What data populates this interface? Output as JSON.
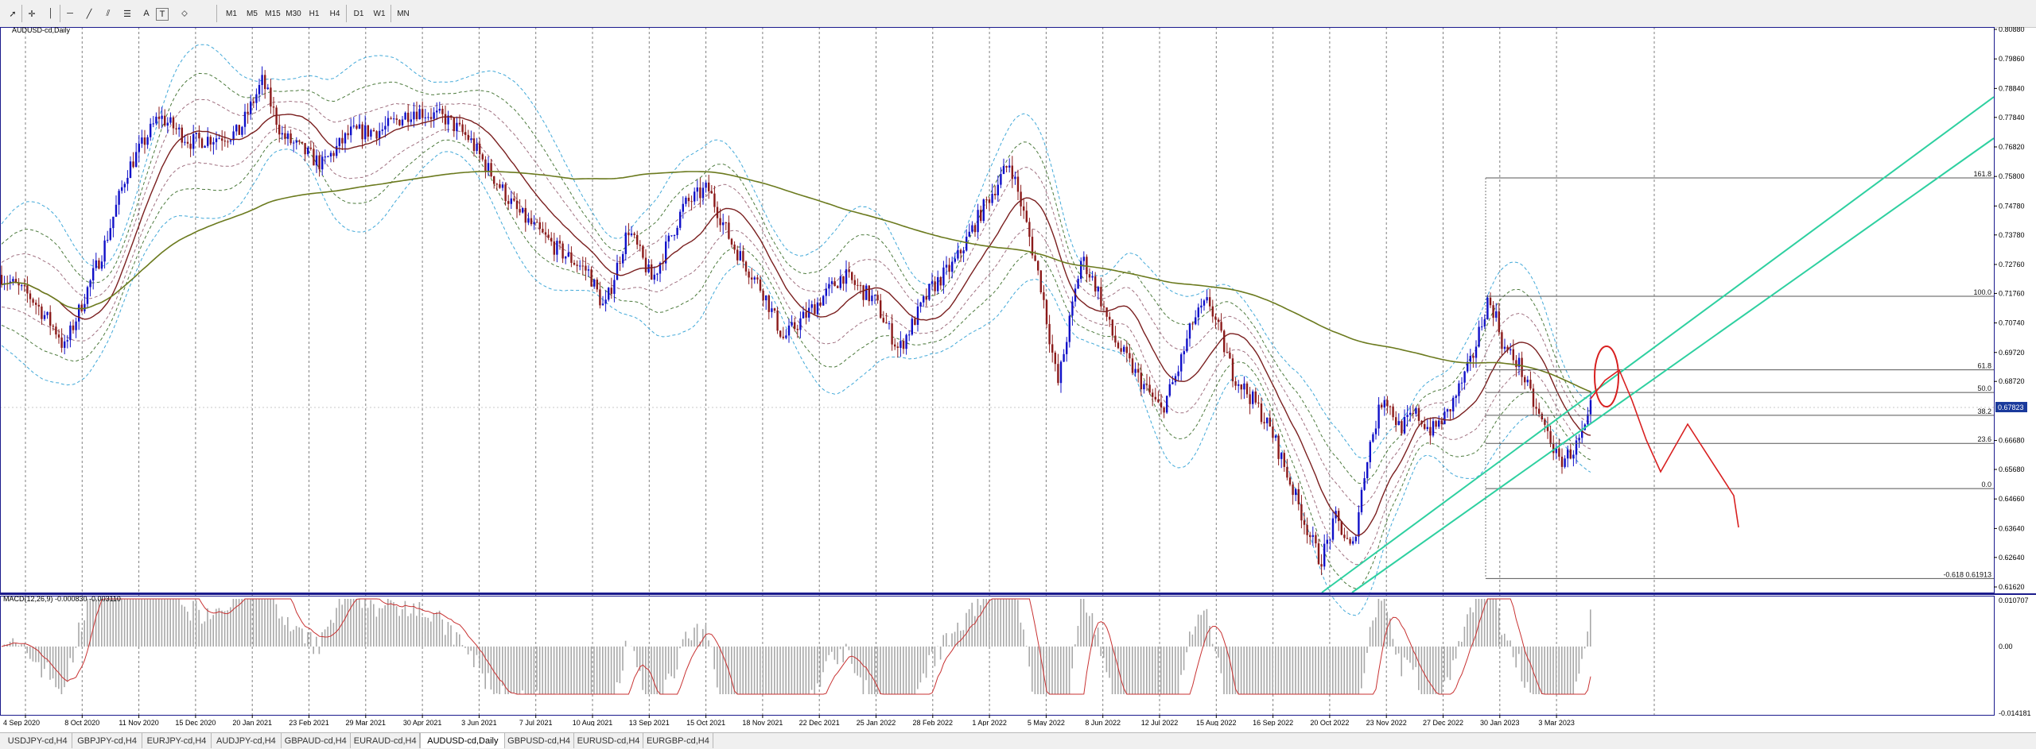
{
  "toolbar": {
    "tools": [
      "cursor-icon",
      "crosshair-icon",
      "vertical-line-icon",
      "horizontal-line-icon",
      "trendline-icon",
      "channel-icon",
      "fibonacci-icon",
      "text-icon",
      "text-label-icon",
      "shapes-icon"
    ],
    "text_tool": "A",
    "label_tool": "T",
    "timeframes": [
      "M1",
      "M5",
      "M15",
      "M30",
      "H1",
      "H4",
      "D1",
      "W1",
      "MN"
    ]
  },
  "chart": {
    "title": "AUDUSD-cd,Daily",
    "current_price": "0.67823",
    "price_labels": [
      "0.80880",
      "0.79860",
      "0.78840",
      "0.77840",
      "0.76820",
      "0.75800",
      "0.74780",
      "0.73780",
      "0.72760",
      "0.71760",
      "0.70740",
      "0.69720",
      "0.68720",
      "0.67823",
      "0.66680",
      "0.65680",
      "0.64660",
      "0.63640",
      "0.62640",
      "0.61620"
    ],
    "price_range": {
      "top": 0.8088,
      "bottom": 0.6162
    },
    "date_labels": [
      "4 Sep 2020",
      "8 Oct 2020",
      "11 Nov 2020",
      "15 Dec 2020",
      "20 Jan 2021",
      "23 Feb 2021",
      "29 Mar 2021",
      "30 Apr 2021",
      "3 Jun 2021",
      "7 Jul 2021",
      "10 Aug 2021",
      "13 Sep 2021",
      "15 Oct 2021",
      "18 Nov 2021",
      "22 Dec 2021",
      "25 Jan 2022",
      "28 Feb 2022",
      "1 Apr 2022",
      "5 May 2022",
      "8 Jun 2022",
      "12 Jul 2022",
      "15 Aug 2022",
      "16 Sep 2022",
      "20 Oct 2022",
      "23 Nov 2022",
      "27 Dec 2022",
      "30 Jan 2023",
      "3 Mar 2023"
    ],
    "fib_levels": [
      {
        "label": "161.8",
        "price": 0.7575
      },
      {
        "label": "100.0",
        "price": 0.7166
      },
      {
        "label": "61.8",
        "price": 0.6912
      },
      {
        "label": "50.0",
        "price": 0.6834
      },
      {
        "label": "38.2",
        "price": 0.6755
      },
      {
        "label": "23.6",
        "price": 0.6658
      },
      {
        "label": "0.0",
        "price": 0.6502
      },
      {
        "label": "-0.618 0.61913",
        "price": 0.61913
      }
    ]
  },
  "macd": {
    "title": "MACD(12,26,9) -0.000830 -0.003110",
    "labels": [
      "0.010707",
      "0.00",
      "-0.014181"
    ]
  },
  "tabs": [
    "USDJPY-cd,H4",
    "GBPJPY-cd,H4",
    "EURJPY-cd,H4",
    "AUDJPY-cd,H4",
    "GBPAUD-cd,H4",
    "EURAUD-cd,H4",
    "AUDUSD-cd,Daily",
    "GBPUSD-cd,H4",
    "EURUSD-cd,H4",
    "EURGBP-cd,H4"
  ],
  "active_tab": "AUDUSD-cd,Daily",
  "colors": {
    "bull": "#1010c8",
    "bear": "#8b1a1a",
    "ma_fast": "#7a1f1f",
    "ma_slow": "#6b7a1e",
    "bands": "#40a8d8",
    "channel": "#2ed0a0",
    "projection": "#d82020",
    "axis": "#1a1a8c"
  }
}
